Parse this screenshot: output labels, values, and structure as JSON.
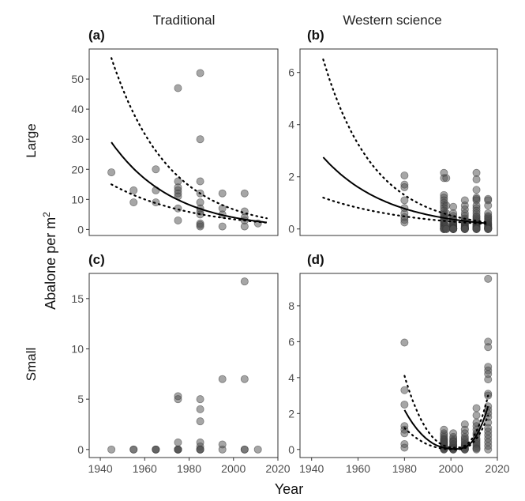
{
  "figure": {
    "col_titles": [
      "Traditional",
      "Western science"
    ],
    "row_labels": [
      "Large",
      "Small"
    ],
    "ylabel": "Abalone per m",
    "ylabel_sup": "2",
    "xlabel": "Year"
  },
  "chart_data": [
    {
      "type": "scatter",
      "panel": "(a)",
      "xlim": [
        1935,
        2020
      ],
      "ylim": [
        -2,
        60
      ],
      "yticks": [
        0,
        10,
        20,
        30,
        40,
        50
      ],
      "points": {
        "x": [
          1945,
          1955,
          1955,
          1965,
          1965,
          1965,
          1975,
          1975,
          1975,
          1975,
          1975,
          1975,
          1975,
          1975,
          1985,
          1985,
          1985,
          1985,
          1985,
          1985,
          1985,
          1985,
          1985,
          1985,
          1985,
          1995,
          1995,
          1995,
          1995,
          2005,
          2005,
          2005,
          2005,
          2005,
          2011
        ],
        "y": [
          19,
          13,
          9,
          20,
          13,
          9,
          47,
          16,
          14,
          13,
          12,
          7,
          3,
          11,
          52,
          30,
          16,
          12,
          9,
          7,
          6,
          5,
          2,
          1,
          1.5,
          12,
          7,
          5,
          1,
          12,
          6,
          4,
          3,
          1,
          2
        ]
      },
      "fit": {
        "x0": 1945,
        "x1": 2015,
        "y0": 29,
        "k": 0.036
      },
      "upper": {
        "x0": 1945,
        "x1": 2015,
        "y0": 57,
        "k": 0.039
      },
      "lower": {
        "x0": 1945,
        "x1": 2015,
        "y0": 15,
        "k": 0.027
      }
    },
    {
      "type": "scatter",
      "panel": "(b)",
      "xlim": [
        1935,
        2020
      ],
      "ylim": [
        -0.25,
        6.9
      ],
      "yticks": [
        0,
        2,
        4,
        6
      ],
      "points": {
        "x": [
          1980,
          1980,
          1980,
          1980,
          1980,
          1980,
          1980,
          1980,
          1980,
          1997,
          1997,
          1997,
          1997,
          1997,
          1997,
          1997,
          1997,
          1997,
          1997,
          1997,
          1997,
          1997,
          1997,
          1997,
          1997,
          1997,
          1997,
          1997,
          1997,
          1997,
          1997,
          1997,
          1997,
          1997,
          1997,
          1997,
          1997,
          1997,
          1997,
          1997,
          1998,
          1998,
          1998,
          1998,
          1998,
          1998,
          1998,
          1998,
          1998,
          1998,
          2001,
          2001,
          2001,
          2001,
          2001,
          2001,
          2001,
          2001,
          2001,
          2001,
          2001,
          2001,
          2001,
          2001,
          2001,
          2001,
          2001,
          2001,
          2001,
          2001,
          2001,
          2001,
          2001,
          2001,
          2001,
          2001,
          2001,
          2001,
          2001,
          2001,
          2006,
          2006,
          2006,
          2006,
          2006,
          2006,
          2006,
          2006,
          2006,
          2006,
          2006,
          2006,
          2006,
          2006,
          2006,
          2006,
          2006,
          2006,
          2006,
          2006,
          2006,
          2006,
          2006,
          2006,
          2006,
          2011,
          2011,
          2011,
          2011,
          2011,
          2011,
          2011,
          2011,
          2011,
          2011,
          2011,
          2011,
          2011,
          2011,
          2011,
          2011,
          2011,
          2011,
          2011,
          2011,
          2011,
          2011,
          2011,
          2011,
          2011,
          2011,
          2011,
          2011,
          2011,
          2011,
          2016,
          2016,
          2016,
          2016,
          2016,
          2016,
          2016,
          2016,
          2016,
          2016,
          2016,
          2016,
          2016,
          2016,
          2016,
          2016,
          2016,
          2016,
          2016,
          2016,
          2016,
          2016,
          2016,
          2016,
          2016
        ],
        "y": [
          2.05,
          1.7,
          1.6,
          1.1,
          0.8,
          0.6,
          0.45,
          0.35,
          0.25,
          2.15,
          1.95,
          1.3,
          1.2,
          1.1,
          1.0,
          0.9,
          0.8,
          0.7,
          0.6,
          0.55,
          0.5,
          0.45,
          0.4,
          0.35,
          0.3,
          0.25,
          0.2,
          0.18,
          0.15,
          0.12,
          0.1,
          0.08,
          0.05,
          0.03,
          0.0,
          0.0,
          0.0,
          0.0,
          0.0,
          0.0,
          1.95,
          0.9,
          0.6,
          0.4,
          0.2,
          0.1,
          0.05,
          0.0,
          0.0,
          0.0,
          0.85,
          0.6,
          0.5,
          0.4,
          0.35,
          0.3,
          0.25,
          0.2,
          0.18,
          0.15,
          0.12,
          0.1,
          0.08,
          0.06,
          0.05,
          0.04,
          0.03,
          0.02,
          0.01,
          0.0,
          0.0,
          0.0,
          0.0,
          0.0,
          0.0,
          0.0,
          0.0,
          0.0,
          0.0,
          0.0,
          1.1,
          0.9,
          0.75,
          0.6,
          0.5,
          0.4,
          0.35,
          0.3,
          0.25,
          0.2,
          0.18,
          0.15,
          0.12,
          0.1,
          0.08,
          0.06,
          0.05,
          0.04,
          0.02,
          0.0,
          0.0,
          0.0,
          0.0,
          0.0,
          0.0,
          2.15,
          1.9,
          1.5,
          1.2,
          1.15,
          1.1,
          0.9,
          0.8,
          0.7,
          0.6,
          0.5,
          0.45,
          0.4,
          0.35,
          0.3,
          0.25,
          0.2,
          0.18,
          0.15,
          0.12,
          0.1,
          0.08,
          0.06,
          0.05,
          0.03,
          0.0,
          0.0,
          0.0,
          0.0,
          0.0,
          1.15,
          1.1,
          0.9,
          0.6,
          0.5,
          0.45,
          0.4,
          0.35,
          0.3,
          0.25,
          0.2,
          0.18,
          0.15,
          0.12,
          0.1,
          0.08,
          0.06,
          0.05,
          0.04,
          0.02,
          0.0,
          0.0,
          0.0,
          0.0,
          0.0
        ]
      },
      "fit": {
        "x0": 1945,
        "x1": 2015,
        "y0": 2.75,
        "k": 0.036
      },
      "upper": {
        "x0": 1945,
        "x1": 2015,
        "y0": 6.5,
        "k": 0.046
      },
      "lower": {
        "x0": 1945,
        "x1": 2015,
        "y0": 1.2,
        "k": 0.026
      }
    },
    {
      "type": "scatter",
      "panel": "(c)",
      "xlim": [
        1935,
        2020
      ],
      "ylim": [
        -0.8,
        17.5
      ],
      "yticks": [
        0,
        5,
        10,
        15
      ],
      "xticks": [
        1940,
        1960,
        1980,
        2000,
        2020
      ],
      "points": {
        "x": [
          1945,
          1955,
          1955,
          1965,
          1965,
          1965,
          1975,
          1975,
          1975,
          1975,
          1975,
          1975,
          1975,
          1985,
          1985,
          1985,
          1985,
          1985,
          1985,
          1985,
          1985,
          1995,
          1995,
          1995,
          2005,
          2005,
          2005,
          2005,
          2011
        ],
        "y": [
          0,
          0,
          0,
          0,
          0,
          0,
          5.3,
          5.0,
          0.7,
          0,
          0,
          0,
          0,
          5.0,
          4.0,
          2.8,
          0.7,
          0.3,
          0,
          0,
          0,
          7.0,
          0.5,
          0,
          16.7,
          7.0,
          0,
          0,
          0
        ]
      }
    },
    {
      "type": "scatter",
      "panel": "(d)",
      "xlim": [
        1935,
        2020
      ],
      "ylim": [
        -0.45,
        9.8
      ],
      "yticks": [
        0,
        2,
        4,
        6,
        8
      ],
      "xticks": [
        1940,
        1960,
        1980,
        2000,
        2020
      ],
      "points": {
        "x": [
          1980,
          1980,
          1980,
          1980,
          1980,
          1980,
          1980,
          1980,
          1997,
          1997,
          1997,
          1997,
          1997,
          1997,
          1997,
          1997,
          1997,
          1997,
          1997,
          1997,
          1997,
          1997,
          1997,
          1997,
          1997,
          1997,
          1997,
          1997,
          2001,
          2001,
          2001,
          2001,
          2001,
          2001,
          2001,
          2001,
          2001,
          2001,
          2001,
          2001,
          2001,
          2001,
          2001,
          2001,
          2001,
          2006,
          2006,
          2006,
          2006,
          2006,
          2006,
          2006,
          2006,
          2006,
          2006,
          2006,
          2006,
          2006,
          2006,
          2006,
          2006,
          2011,
          2011,
          2011,
          2011,
          2011,
          2011,
          2011,
          2011,
          2011,
          2011,
          2011,
          2011,
          2011,
          2011,
          2011,
          2016,
          2016,
          2016,
          2016,
          2016,
          2016,
          2016,
          2016,
          2016,
          2016,
          2016,
          2016,
          2016,
          2016,
          2016,
          2016,
          2016,
          2016,
          2016,
          2016,
          2016
        ],
        "y": [
          5.95,
          3.3,
          2.5,
          1.3,
          1.1,
          0.9,
          0.3,
          0.1,
          1.1,
          0.9,
          0.8,
          0.7,
          0.6,
          0.55,
          0.5,
          0.45,
          0.4,
          0.35,
          0.3,
          0.25,
          0.2,
          0.15,
          0.1,
          0.08,
          0.05,
          0.03,
          0.0,
          0.0,
          0.9,
          0.7,
          0.6,
          0.5,
          0.45,
          0.4,
          0.3,
          0.25,
          0.2,
          0.15,
          0.1,
          0.08,
          0.05,
          0.03,
          0.0,
          0.0,
          0.0,
          1.4,
          1.1,
          0.9,
          0.7,
          0.6,
          0.5,
          0.4,
          0.3,
          0.25,
          0.2,
          0.15,
          0.1,
          0.05,
          0.0,
          0.0,
          0.0,
          2.3,
          1.9,
          1.5,
          1.3,
          1.1,
          0.9,
          0.8,
          0.6,
          0.5,
          0.4,
          0.3,
          0.2,
          0.1,
          0.05,
          0.0,
          9.5,
          6.0,
          5.7,
          4.6,
          4.4,
          4.2,
          3.9,
          3.1,
          3.0,
          2.4,
          2.2,
          2.0,
          1.8,
          1.5,
          1.2,
          1.0,
          0.8,
          0.6,
          0.4,
          0.2,
          0.0
        ]
      },
      "fit": {
        "x0": 1980,
        "x1": 2016,
        "peak": 2.2,
        "min": 0.03,
        "xmin": 2002,
        "right": 2.4
      },
      "upper": {
        "x0": 1980,
        "x1": 2016,
        "peak": 4.1,
        "min": 0.1,
        "xmin": 2002,
        "right": 3.0
      },
      "lower": {
        "x0": 1980,
        "x1": 2016,
        "peak": 1.2,
        "min": 0.0,
        "xmin": 2002,
        "right": 1.9
      }
    }
  ]
}
